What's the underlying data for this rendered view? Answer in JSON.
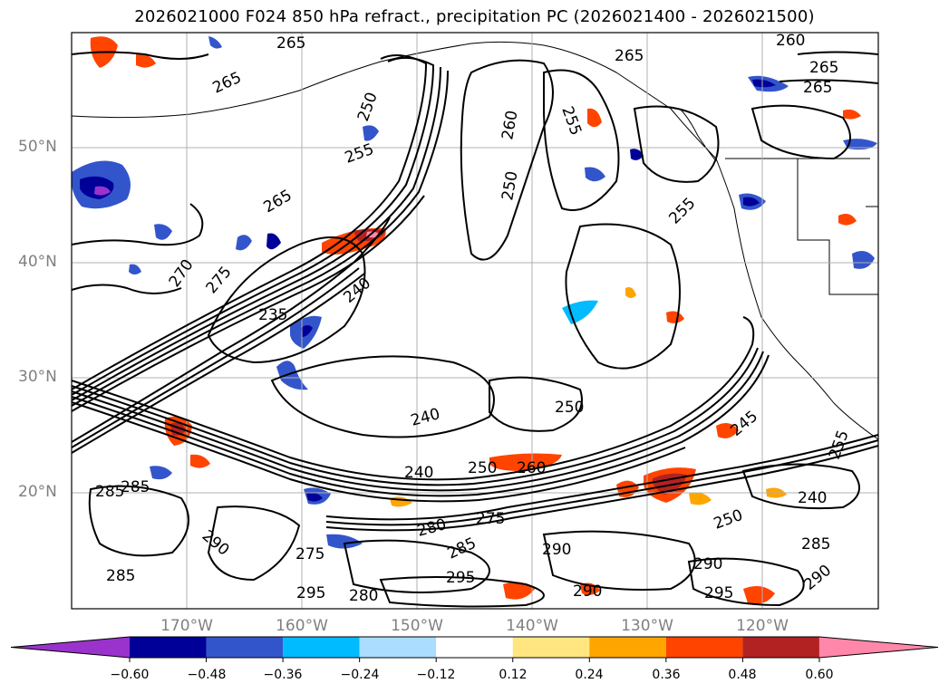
{
  "title": "2026021000 F024 850 hPa refract., precipitation PC (2026021400 - 2026021500)",
  "lat_labels": [
    "50°N",
    "40°N",
    "30°N",
    "20°N"
  ],
  "lon_labels": [
    "170°W",
    "160°W",
    "150°W",
    "140°W",
    "130°W",
    "120°W"
  ],
  "colorbar": {
    "ticks": [
      "−0.60",
      "−0.48",
      "−0.36",
      "−0.24",
      "−0.12",
      "0.12",
      "0.24",
      "0.36",
      "0.48",
      "0.60"
    ],
    "colors": [
      "#9933cc",
      "#000099",
      "#3355cc",
      "#00bbff",
      "#aaddff",
      "#ffffff",
      "#ffe680",
      "#ffa500",
      "#ff4400",
      "#b22222",
      "#ff88aa"
    ],
    "extend": "both"
  },
  "contour_labels": [
    "265",
    "265",
    "250",
    "255",
    "260",
    "250",
    "255",
    "265",
    "260",
    "265",
    "255",
    "265",
    "270",
    "275",
    "265",
    "240",
    "235",
    "250",
    "240",
    "240",
    "250",
    "245",
    "255",
    "275",
    "285",
    "285",
    "290",
    "275",
    "280",
    "285",
    "295",
    "290",
    "295",
    "290",
    "290",
    "295",
    "285",
    "250",
    "240",
    "285",
    "260",
    "280",
    "290"
  ],
  "colors": {
    "land_outline": "#000000",
    "grid": "#b0b0b0",
    "axis_label": "#808080"
  }
}
